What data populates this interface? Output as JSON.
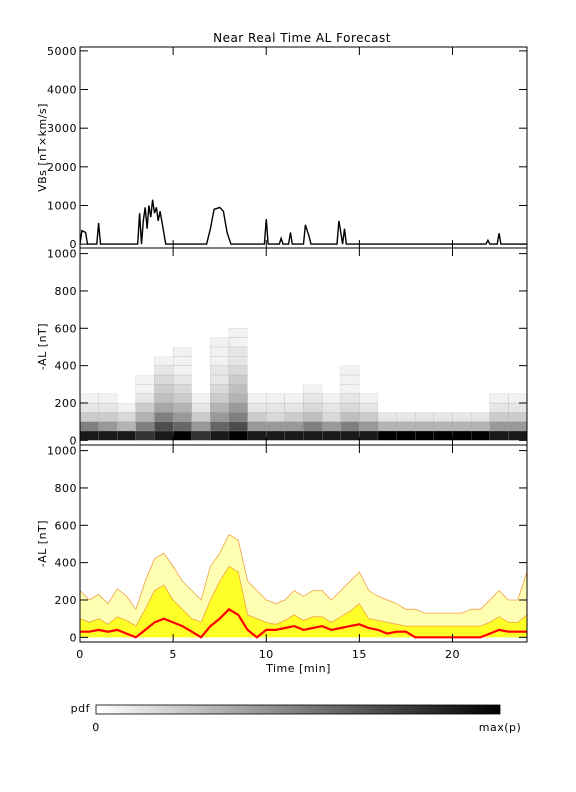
{
  "chart_data": [
    {
      "type": "line",
      "title": "Near Real Time AL Forecast",
      "ylabel": "VBs [nT×km/s]",
      "color": "#000000",
      "xlim": [
        0,
        24
      ],
      "xticks": [
        0,
        5,
        10,
        15,
        20
      ],
      "ylim": [
        -100,
        5100
      ],
      "yticks": [
        0,
        1000,
        2000,
        3000,
        4000,
        5000
      ],
      "x": [
        0,
        0.1,
        0.3,
        0.4,
        0.9,
        1.0,
        1.1,
        3.1,
        3.2,
        3.3,
        3.4,
        3.5,
        3.6,
        3.7,
        3.8,
        3.9,
        4.0,
        4.1,
        4.2,
        4.3,
        4.5,
        4.6,
        6.8,
        7.0,
        7.2,
        7.5,
        7.7,
        7.9,
        8.1,
        9.9,
        10.0,
        10.1,
        10.7,
        10.8,
        10.9,
        11.2,
        11.3,
        11.4,
        12.0,
        12.1,
        12.2,
        12.3,
        12.4,
        13.8,
        13.9,
        14.0,
        14.1,
        14.2,
        14.3,
        21.8,
        21.9,
        22.0,
        22.4,
        22.5,
        22.6,
        24
      ],
      "values": [
        0,
        350,
        300,
        0,
        0,
        550,
        0,
        0,
        800,
        0,
        600,
        950,
        400,
        1000,
        700,
        1150,
        800,
        950,
        600,
        850,
        300,
        0,
        0,
        400,
        900,
        950,
        850,
        300,
        0,
        0,
        650,
        0,
        0,
        150,
        0,
        0,
        300,
        0,
        0,
        500,
        350,
        200,
        0,
        0,
        600,
        300,
        0,
        400,
        0,
        0,
        100,
        0,
        0,
        280,
        0,
        0
      ]
    },
    {
      "type": "heatmap",
      "ylabel": "-AL [nT]",
      "colormap": [
        "#ffffff",
        "#000000"
      ],
      "xlim": [
        0,
        24
      ],
      "xticks": [
        0,
        5,
        10,
        15,
        20
      ],
      "ylim": [
        -25,
        1030
      ],
      "yticks": [
        0,
        200,
        400,
        600,
        800,
        1000
      ],
      "x_edges": [
        0,
        1,
        2,
        3,
        4,
        5,
        6,
        7,
        8,
        9,
        10,
        11,
        12,
        13,
        14,
        15,
        16,
        17,
        18,
        19,
        20,
        21,
        22,
        23,
        24
      ],
      "y_edges": [
        0,
        50,
        100,
        150,
        200,
        250,
        300,
        350,
        400,
        450,
        500,
        550,
        600
      ],
      "z": [
        [
          0.9,
          0.9,
          0.9,
          0.8,
          0.9,
          1,
          0.8,
          0.9,
          1,
          0.9,
          0.9,
          0.9,
          0.9,
          0.9,
          0.9,
          0.9,
          1,
          1,
          1,
          1,
          1,
          1,
          0.9,
          0.9
        ],
        [
          0.5,
          0.4,
          0.3,
          0.5,
          0.7,
          0.6,
          0.4,
          0.6,
          0.7,
          0.4,
          0.4,
          0.4,
          0.5,
          0.4,
          0.5,
          0.4,
          0.3,
          0.3,
          0.3,
          0.3,
          0.3,
          0.3,
          0.4,
          0.4
        ],
        [
          0.2,
          0.2,
          0.15,
          0.3,
          0.5,
          0.4,
          0.2,
          0.4,
          0.5,
          0.2,
          0.15,
          0.2,
          0.25,
          0.15,
          0.25,
          0.2,
          0.1,
          0.1,
          0.1,
          0.1,
          0.1,
          0.1,
          0.2,
          0.2
        ],
        [
          0.1,
          0.1,
          0.05,
          0.2,
          0.35,
          0.3,
          0.1,
          0.3,
          0.4,
          0.1,
          0.1,
          0.1,
          0.15,
          0.1,
          0.15,
          0.1,
          0,
          0,
          0,
          0,
          0,
          0,
          0.1,
          0.1
        ],
        [
          0.05,
          0.05,
          0,
          0.1,
          0.25,
          0.2,
          0.05,
          0.2,
          0.3,
          0.05,
          0.05,
          0.05,
          0.1,
          0.05,
          0.1,
          0.05,
          0,
          0,
          0,
          0,
          0,
          0,
          0.05,
          0.05
        ],
        [
          0,
          0,
          0,
          0.05,
          0.2,
          0.15,
          0,
          0.15,
          0.25,
          0,
          0,
          0,
          0.05,
          0,
          0.05,
          0,
          0,
          0,
          0,
          0,
          0,
          0,
          0,
          0
        ],
        [
          0,
          0,
          0,
          0.05,
          0.15,
          0.1,
          0,
          0.1,
          0.2,
          0,
          0,
          0,
          0,
          0,
          0.05,
          0,
          0,
          0,
          0,
          0,
          0,
          0,
          0,
          0
        ],
        [
          0,
          0,
          0,
          0,
          0.1,
          0.05,
          0,
          0.1,
          0.15,
          0,
          0,
          0,
          0,
          0,
          0.05,
          0,
          0,
          0,
          0,
          0,
          0,
          0,
          0,
          0
        ],
        [
          0,
          0,
          0,
          0,
          0.05,
          0.05,
          0,
          0.05,
          0.1,
          0,
          0,
          0,
          0,
          0,
          0,
          0,
          0,
          0,
          0,
          0,
          0,
          0,
          0,
          0
        ],
        [
          0,
          0,
          0,
          0,
          0,
          0.05,
          0,
          0.05,
          0.1,
          0,
          0,
          0,
          0,
          0,
          0,
          0,
          0,
          0,
          0,
          0,
          0,
          0,
          0,
          0
        ],
        [
          0,
          0,
          0,
          0,
          0,
          0,
          0,
          0.05,
          0.05,
          0,
          0,
          0,
          0,
          0,
          0,
          0,
          0,
          0,
          0,
          0,
          0,
          0,
          0,
          0
        ],
        [
          0,
          0,
          0,
          0,
          0,
          0,
          0,
          0,
          0.05,
          0,
          0,
          0,
          0,
          0,
          0,
          0,
          0,
          0,
          0,
          0,
          0,
          0,
          0,
          0
        ]
      ]
    },
    {
      "type": "area",
      "ylabel": "-AL [nT]",
      "xlabel": "Time [min]",
      "xlim": [
        0,
        24
      ],
      "xticks": [
        0,
        5,
        10,
        15,
        20
      ],
      "ylim": [
        -25,
        1030
      ],
      "yticks": [
        0,
        200,
        400,
        600,
        800,
        1000
      ],
      "x": [
        0,
        0.5,
        1,
        1.5,
        2,
        2.5,
        3,
        3.5,
        4,
        4.5,
        5,
        5.5,
        6,
        6.5,
        7,
        7.5,
        8,
        8.5,
        9,
        9.5,
        10,
        10.5,
        11,
        11.5,
        12,
        12.5,
        13,
        13.5,
        14,
        14.5,
        15,
        15.5,
        16,
        16.5,
        17,
        17.5,
        18,
        18.5,
        19,
        19.5,
        20,
        20.5,
        21,
        21.5,
        22,
        22.5,
        23,
        23.5,
        24
      ],
      "series": [
        {
          "color": "#ffffb4",
          "edge_color": "#f0a040",
          "fill": true,
          "values": [
            250,
            200,
            230,
            180,
            260,
            220,
            150,
            300,
            420,
            450,
            380,
            300,
            250,
            200,
            380,
            450,
            550,
            520,
            300,
            250,
            200,
            180,
            200,
            250,
            220,
            250,
            250,
            200,
            250,
            300,
            350,
            250,
            220,
            200,
            180,
            150,
            150,
            130,
            130,
            130,
            130,
            130,
            150,
            150,
            200,
            250,
            200,
            200,
            350
          ]
        },
        {
          "color": "#ffff28",
          "edge_color": "#f0a040",
          "fill": true,
          "values": [
            100,
            80,
            100,
            70,
            110,
            90,
            60,
            150,
            250,
            280,
            200,
            150,
            100,
            80,
            200,
            300,
            380,
            350,
            120,
            100,
            80,
            70,
            90,
            120,
            90,
            110,
            110,
            80,
            110,
            140,
            180,
            100,
            90,
            80,
            70,
            60,
            60,
            60,
            60,
            60,
            60,
            60,
            60,
            60,
            80,
            110,
            80,
            80,
            120
          ]
        },
        {
          "color": "#ff0000",
          "fill": false,
          "values": [
            30,
            30,
            40,
            30,
            40,
            20,
            0,
            40,
            80,
            100,
            80,
            60,
            30,
            0,
            60,
            100,
            150,
            120,
            40,
            0,
            40,
            40,
            50,
            60,
            40,
            50,
            60,
            40,
            50,
            60,
            70,
            50,
            40,
            20,
            30,
            30,
            0,
            0,
            0,
            0,
            0,
            0,
            0,
            0,
            20,
            40,
            30,
            30,
            30
          ]
        }
      ]
    }
  ],
  "colorbar": {
    "label": "pdf",
    "min_label": "0",
    "max_label": "max(p)"
  }
}
